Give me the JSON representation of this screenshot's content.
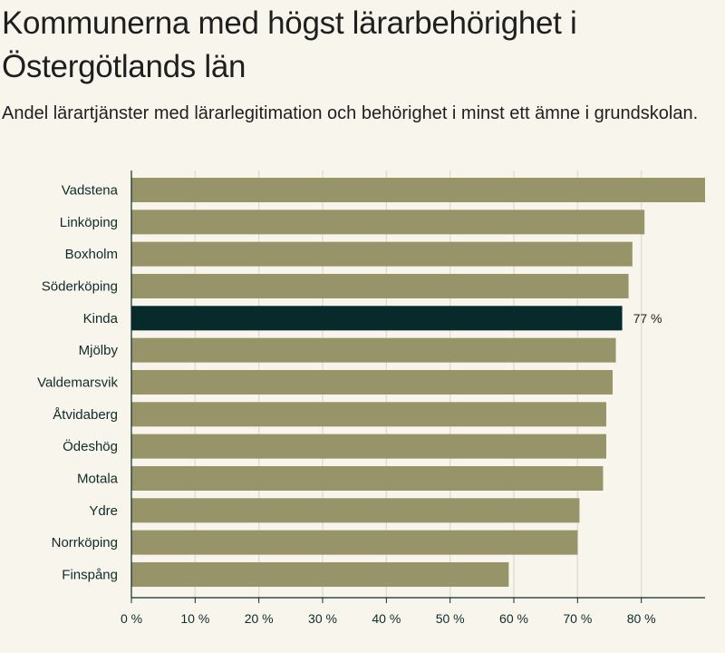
{
  "header": {
    "title": "Kommunerna med högst lärarbehörighet i Östergötlands län",
    "subtitle": "Andel lärartjänster med lärarlegitimation och behörighet i minst ett ämne i grundskolan."
  },
  "chart_data": {
    "type": "bar",
    "orientation": "horizontal",
    "title": "Kommunerna med högst lärarbehörighet i Östergötlands län",
    "subtitle": "Andel lärartjänster med lärarlegitimation och behörighet i minst ett ämne i grundskolan.",
    "categories": [
      "Vadstena",
      "Linköping",
      "Boxholm",
      "Söderköping",
      "Kinda",
      "Mjölby",
      "Valdemarsvik",
      "Åtvidaberg",
      "Ödeshög",
      "Motala",
      "Ydre",
      "Norrköping",
      "Finspång"
    ],
    "values": [
      90,
      80.5,
      78.6,
      78,
      77,
      76,
      75.5,
      74.5,
      74.5,
      74,
      70.3,
      70,
      59.2
    ],
    "highlight": "Kinda",
    "highlight_label": "77 %",
    "xlim": [
      0,
      90
    ],
    "ticks": [
      0,
      10,
      20,
      30,
      40,
      50,
      60,
      70,
      80
    ],
    "tick_labels": [
      "0 %",
      "10 %",
      "20 %",
      "30 %",
      "40 %",
      "50 %",
      "60 %",
      "70 %",
      "80 %"
    ],
    "grid": true,
    "xlabel": "",
    "ylabel": "",
    "colors": {
      "bar": "#989469",
      "highlight": "#072a2a",
      "grid": "#e3ded2",
      "axis": "#0f2b2b",
      "background": "#f8f5ec"
    }
  }
}
